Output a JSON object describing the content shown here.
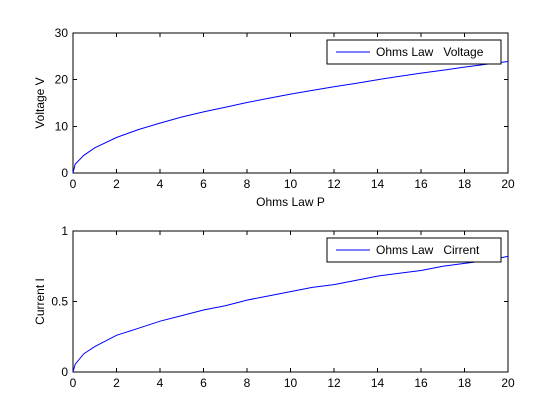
{
  "chart_data": [
    {
      "type": "line",
      "xlabel": "Ohms Law P",
      "ylabel": "Voltage V",
      "xlim": [
        0,
        20
      ],
      "ylim": [
        0,
        30
      ],
      "xticks": [
        0,
        2,
        4,
        6,
        8,
        10,
        12,
        14,
        16,
        18,
        20
      ],
      "yticks": [
        0,
        10,
        20,
        30
      ],
      "grid": false,
      "legend_position": "top-right",
      "series": [
        {
          "name": "Ohms Law   Voltage",
          "color": "#0000ff",
          "x": [
            0,
            0.1,
            0.5,
            1,
            2,
            3,
            4,
            5,
            6,
            7,
            8,
            9,
            10,
            11,
            12,
            13,
            14,
            15,
            16,
            17,
            18,
            19,
            20
          ],
          "y": [
            0,
            1.9,
            3.8,
            5.4,
            7.6,
            9.3,
            10.7,
            12.0,
            13.1,
            14.1,
            15.1,
            16.0,
            16.9,
            17.7,
            18.5,
            19.2,
            20.0,
            20.7,
            21.4,
            22.0,
            22.7,
            23.3,
            23.9
          ]
        }
      ]
    },
    {
      "type": "line",
      "xlabel": "",
      "ylabel": "Current I",
      "xlim": [
        0,
        20
      ],
      "ylim": [
        0,
        1
      ],
      "xticks": [
        0,
        2,
        4,
        6,
        8,
        10,
        12,
        14,
        16,
        18,
        20
      ],
      "yticks": [
        0,
        0.5,
        1
      ],
      "grid": false,
      "legend_position": "top-right",
      "series": [
        {
          "name": "Ohms Law   Cirrent",
          "color": "#0000ff",
          "x": [
            0,
            0.1,
            0.5,
            1,
            2,
            3,
            4,
            5,
            6,
            7,
            8,
            9,
            10,
            11,
            12,
            13,
            14,
            15,
            16,
            17,
            18,
            19,
            20
          ],
          "y": [
            0,
            0.055,
            0.13,
            0.18,
            0.26,
            0.31,
            0.36,
            0.4,
            0.44,
            0.47,
            0.51,
            0.54,
            0.57,
            0.6,
            0.62,
            0.65,
            0.68,
            0.7,
            0.72,
            0.75,
            0.77,
            0.79,
            0.82
          ]
        }
      ]
    }
  ]
}
